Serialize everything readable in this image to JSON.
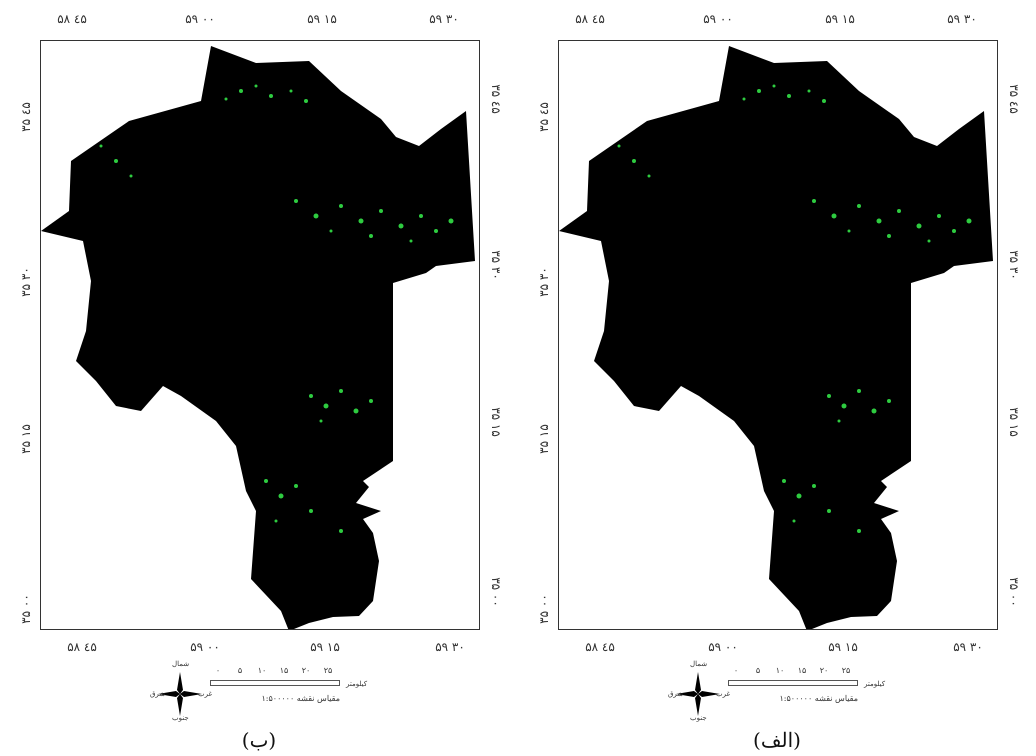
{
  "panels": [
    {
      "id": "b",
      "caption": "(ب)",
      "top_ticks": [
        "۵۸ ٤۵",
        "۵۹ ۰۰",
        "۵۹ ۱۵",
        "۵۹ ۳۰"
      ],
      "bottom_ticks": [
        "۵۸ ٤۵",
        "۵۹ ۰۰",
        "۵۹ ۱۵",
        "۵۹ ۳۰"
      ],
      "left_ticks": [
        "۳۵ ٤۵",
        "۳۵ ۳۰",
        "۳۵ ۱۵",
        "۳۵ ۰۰"
      ],
      "right_ticks": [
        "۳۵ ٤۵",
        "۳۵ ۳۰",
        "۳۵ ۱۵",
        "۳۵ ۰۰"
      ]
    },
    {
      "id": "alef",
      "caption": "(الف)",
      "top_ticks": [
        "۵۸ ٤۵",
        "۵۹ ۰۰",
        "۵۹ ۱۵",
        "۵۹ ۳۰"
      ],
      "bottom_ticks": [
        "۵۸ ٤۵",
        "۵۹ ۰۰",
        "۵۹ ۱۵",
        "۵۹ ۳۰"
      ],
      "left_ticks": [
        "۳۵ ٤۵",
        "۳۵ ۳۰",
        "۳۵ ۱۵",
        "۳۵ ۰۰"
      ],
      "right_ticks": [
        "۳۵ ٤۵",
        "۳۵ ۳۰",
        "۳۵ ۱۵",
        "۳۵ ۰۰"
      ]
    }
  ],
  "legend": {
    "compass": {
      "north": "شمال",
      "south": "جنوب",
      "east": "شرق",
      "west": "غرب"
    },
    "scale_numbers": [
      "۰",
      "۵",
      "۱۰",
      "۱۵",
      "۲۰",
      "۲۵"
    ],
    "scale_unit": "کیلومتر",
    "scale_text": "مقیاس نقشه ۱:۵۰۰۰۰۰"
  },
  "colors": {
    "map_fill": "#000000",
    "vegetation": "#2ecc40",
    "frame": "#333333"
  }
}
